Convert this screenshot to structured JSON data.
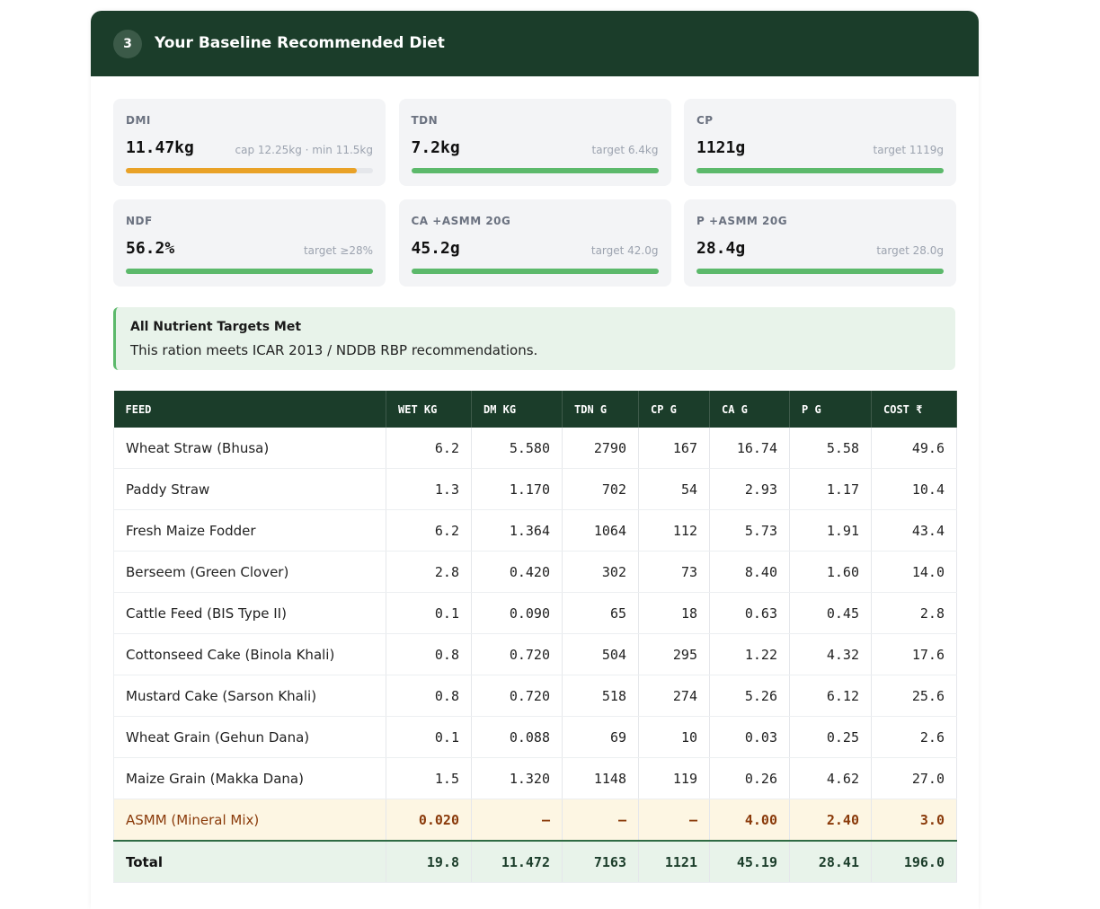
{
  "section": {
    "number": "3",
    "title": "Your Baseline Recommended Diet"
  },
  "metrics": [
    {
      "label": "DMI",
      "value": "11.47kg",
      "note": "cap 12.25kg · min 11.5kg"
    },
    {
      "label": "TDN",
      "value": "7.2kg",
      "note": "target 6.4kg"
    },
    {
      "label": "CP",
      "value": "1121g",
      "note": "target 1119g"
    },
    {
      "label": "NDF",
      "value": "56.2%",
      "note": "target ≥28%"
    },
    {
      "label": "CA +ASMM 20G",
      "value": "45.2g",
      "note": "target 42.0g"
    },
    {
      "label": "P +ASMM 20G",
      "value": "28.4g",
      "note": "target 28.0g"
    }
  ],
  "alert": {
    "title": "All Nutrient Targets Met",
    "text": "This ration meets ICAR 2013 / NDDB RBP recommendations."
  },
  "table": {
    "columns": [
      "FEED",
      "WET KG",
      "DM KG",
      "TDN G",
      "CP G",
      "CA G",
      "P G",
      "COST ₹"
    ],
    "rows": [
      [
        "Wheat Straw (Bhusa)",
        "6.2",
        "5.580",
        "2790",
        "167",
        "16.74",
        "5.58",
        "49.6"
      ],
      [
        "Paddy Straw",
        "1.3",
        "1.170",
        "702",
        "54",
        "2.93",
        "1.17",
        "10.4"
      ],
      [
        "Fresh Maize Fodder",
        "6.2",
        "1.364",
        "1064",
        "112",
        "5.73",
        "1.91",
        "43.4"
      ],
      [
        "Berseem (Green Clover)",
        "2.8",
        "0.420",
        "302",
        "73",
        "8.40",
        "1.60",
        "14.0"
      ],
      [
        "Cattle Feed (BIS Type II)",
        "0.1",
        "0.090",
        "65",
        "18",
        "0.63",
        "0.45",
        "2.8"
      ],
      [
        "Cottonseed Cake (Binola Khali)",
        "0.8",
        "0.720",
        "504",
        "295",
        "1.22",
        "4.32",
        "17.6"
      ],
      [
        "Mustard Cake (Sarson Khali)",
        "0.8",
        "0.720",
        "518",
        "274",
        "5.26",
        "6.12",
        "25.6"
      ],
      [
        "Wheat Grain (Gehun Dana)",
        "0.1",
        "0.088",
        "69",
        "10",
        "0.03",
        "0.25",
        "2.6"
      ],
      [
        "Maize Grain (Makka Dana)",
        "1.5",
        "1.320",
        "1148",
        "119",
        "0.26",
        "4.62",
        "27.0"
      ]
    ],
    "mineral_row": [
      "ASMM (Mineral Mix)",
      "0.020",
      "—",
      "—",
      "—",
      "4.00",
      "2.40",
      "3.0"
    ],
    "total_row": [
      "Total",
      "19.8",
      "11.472",
      "7163",
      "1121",
      "45.19",
      "28.41",
      "196.0"
    ]
  }
}
